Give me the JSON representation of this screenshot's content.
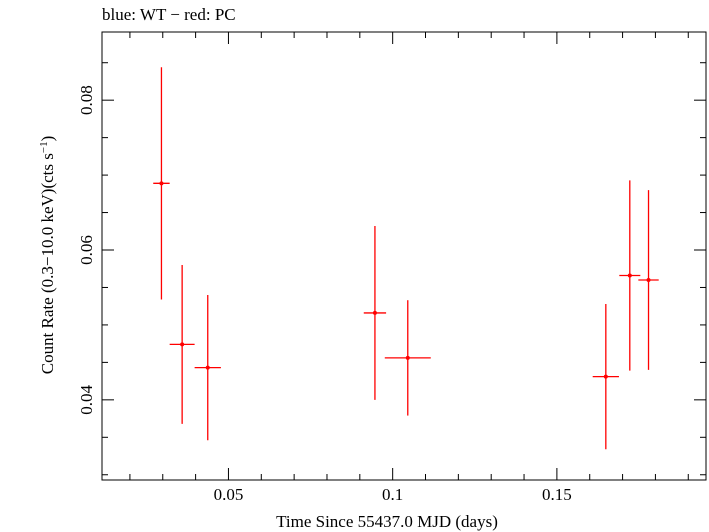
{
  "chart_data": {
    "type": "scatter",
    "title": "blue: WT − red: PC",
    "xlabel": "Time Since 55437.0 MJD (days)",
    "ylabel_main": "Count Rate (0.3−10.0 keV)(cts s",
    "ylabel_sup": "−1",
    "ylabel_end": ")",
    "xlim": [
      0.0115,
      0.1954
    ],
    "ylim": [
      0.0293,
      0.0891
    ],
    "xticks": [
      {
        "value": 0.05,
        "label": "0.05"
      },
      {
        "value": 0.1,
        "label": "0.1"
      },
      {
        "value": 0.15,
        "label": "0.15"
      }
    ],
    "yticks": [
      {
        "value": 0.04,
        "label": "0.04"
      },
      {
        "value": 0.06,
        "label": "0.06"
      },
      {
        "value": 0.08,
        "label": "0.08"
      }
    ],
    "grid": false,
    "series": [
      {
        "name": "PC",
        "color": "#ff0000",
        "points": [
          {
            "x": 0.0296,
            "y": 0.0689,
            "xerr": 0.0025,
            "yerr_lo": 0.0155,
            "yerr_hi": 0.0155
          },
          {
            "x": 0.0359,
            "y": 0.0474,
            "xerr": 0.0038,
            "yerr_lo": 0.0106,
            "yerr_hi": 0.0106
          },
          {
            "x": 0.0437,
            "y": 0.0443,
            "xerr": 0.004,
            "yerr_lo": 0.0097,
            "yerr_hi": 0.0097
          },
          {
            "x": 0.0946,
            "y": 0.0516,
            "xerr": 0.0034,
            "yerr_lo": 0.0116,
            "yerr_hi": 0.0116
          },
          {
            "x": 0.1046,
            "y": 0.0456,
            "xerr": 0.007,
            "yerr_lo": 0.0077,
            "yerr_hi": 0.0077
          },
          {
            "x": 0.1649,
            "y": 0.0431,
            "xerr": 0.004,
            "yerr_lo": 0.0097,
            "yerr_hi": 0.0097
          },
          {
            "x": 0.1722,
            "y": 0.0566,
            "xerr": 0.0032,
            "yerr_lo": 0.0127,
            "yerr_hi": 0.0127
          },
          {
            "x": 0.1779,
            "y": 0.056,
            "xerr": 0.0031,
            "yerr_lo": 0.012,
            "yerr_hi": 0.012
          }
        ]
      }
    ]
  }
}
